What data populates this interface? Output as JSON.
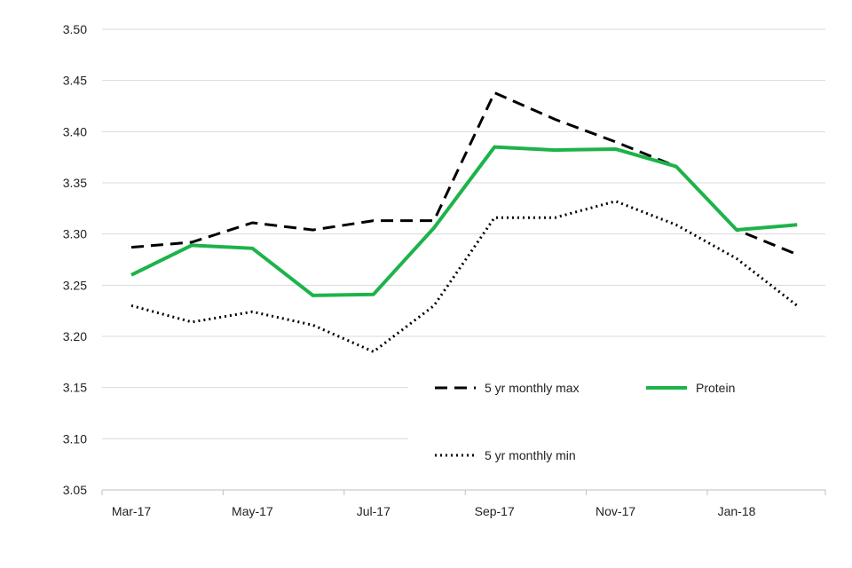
{
  "chart_data": {
    "type": "line",
    "title": "",
    "xlabel": "",
    "ylabel": "",
    "x": [
      "Mar-17",
      "Apr-17",
      "May-17",
      "Jun-17",
      "Jul-17",
      "Aug-17",
      "Sep-17",
      "Oct-17",
      "Nov-17",
      "Dec-17",
      "Jan-18",
      "Feb-18"
    ],
    "x_tick_labels": [
      "Mar-17",
      "May-17",
      "Jul-17",
      "Sep-17",
      "Nov-17",
      "Jan-18"
    ],
    "y_ticks": [
      "3.50",
      "3.45",
      "3.40",
      "3.35",
      "3.30",
      "3.25",
      "3.20",
      "3.15",
      "3.10",
      "3.05"
    ],
    "ylim": [
      3.05,
      3.5
    ],
    "grid": true,
    "legend_position": "inside-lower-right",
    "series": [
      {
        "name": "5 yr monthly max",
        "style": "dashed",
        "color": "#000000",
        "values": [
          3.287,
          3.292,
          3.311,
          3.304,
          3.313,
          3.313,
          3.438,
          3.412,
          3.39,
          3.366,
          3.304,
          3.28
        ]
      },
      {
        "name": "Protein",
        "style": "solid",
        "color": "#1db34a",
        "values": [
          3.26,
          3.289,
          3.286,
          3.24,
          3.241,
          3.306,
          3.385,
          3.382,
          3.383,
          3.366,
          3.304,
          3.309
        ]
      },
      {
        "name": "5 yr monthly min",
        "style": "dotted",
        "color": "#000000",
        "values": [
          3.23,
          3.214,
          3.224,
          3.211,
          3.185,
          3.23,
          3.316,
          3.316,
          3.332,
          3.309,
          3.276,
          3.23
        ]
      }
    ]
  }
}
